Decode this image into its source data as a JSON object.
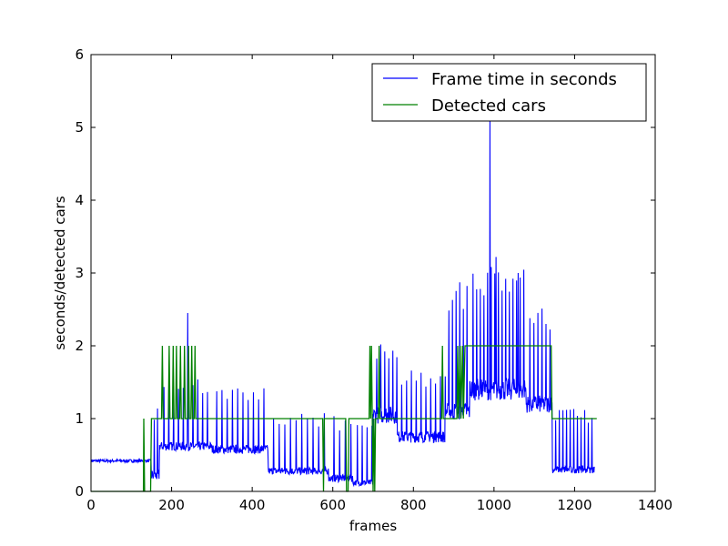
{
  "chart_data": {
    "type": "line",
    "title": "",
    "xlabel": "frames",
    "ylabel": "seconds/detected cars",
    "xlim": [
      0,
      1400
    ],
    "ylim": [
      0,
      6
    ],
    "xticks": [
      0,
      200,
      400,
      600,
      800,
      1000,
      1200,
      1400
    ],
    "yticks": [
      0,
      1,
      2,
      3,
      4,
      5,
      6
    ],
    "grid": false,
    "legend_position": "top-right",
    "series": [
      {
        "name": "Frame time in seconds",
        "color": "#0000ff",
        "segments": [
          {
            "x_start": 0,
            "x_end": 150,
            "base": 0.42,
            "spike_every": 0,
            "spike_height": 0,
            "noise": 0.02
          },
          {
            "x_start": 150,
            "x_end": 170,
            "base": 0.22,
            "spike_every": 8,
            "spike_height": 0.8,
            "noise": 0.08
          },
          {
            "x_start": 170,
            "x_end": 300,
            "base": 0.62,
            "spike_every": 12,
            "spike_height": 0.8,
            "noise": 0.06
          },
          {
            "x_start": 300,
            "x_end": 440,
            "base": 0.58,
            "spike_every": 13,
            "spike_height": 0.75,
            "noise": 0.06
          },
          {
            "x_start": 440,
            "x_end": 590,
            "base": 0.28,
            "spike_every": 14,
            "spike_height": 0.7,
            "noise": 0.05
          },
          {
            "x_start": 590,
            "x_end": 650,
            "base": 0.18,
            "spike_every": 14,
            "spike_height": 0.75,
            "noise": 0.05
          },
          {
            "x_start": 650,
            "x_end": 700,
            "base": 0.12,
            "spike_every": 12,
            "spike_height": 0.75,
            "noise": 0.04
          },
          {
            "x_start": 700,
            "x_end": 760,
            "base": 1.05,
            "spike_every": 10,
            "spike_height": 0.9,
            "noise": 0.12
          },
          {
            "x_start": 760,
            "x_end": 880,
            "base": 0.75,
            "spike_every": 12,
            "spike_height": 0.8,
            "noise": 0.08
          },
          {
            "x_start": 880,
            "x_end": 940,
            "base": 1.1,
            "spike_every": 9,
            "spike_height": 1.6,
            "noise": 0.12
          },
          {
            "x_start": 940,
            "x_end": 1080,
            "base": 1.4,
            "spike_every": 9,
            "spike_height": 1.5,
            "noise": 0.15
          },
          {
            "x_start": 1080,
            "x_end": 1145,
            "base": 1.2,
            "spike_every": 10,
            "spike_height": 1.2,
            "noise": 0.12
          },
          {
            "x_start": 1145,
            "x_end": 1250,
            "base": 0.3,
            "spike_every": 9,
            "spike_height": 0.75,
            "noise": 0.05
          }
        ],
        "peaks": [
          {
            "x": 240,
            "y": 2.45
          },
          {
            "x": 990,
            "y": 5.1
          },
          {
            "x": 1005,
            "y": 3.22
          },
          {
            "x": 1060,
            "y": 3.0
          }
        ]
      },
      {
        "name": "Detected cars",
        "color": "#008000",
        "points": [
          [
            0,
            0
          ],
          [
            130,
            0
          ],
          [
            131,
            1
          ],
          [
            133,
            0
          ],
          [
            148,
            0
          ],
          [
            150,
            1
          ],
          [
            175,
            1
          ],
          [
            177,
            2
          ],
          [
            179,
            1
          ],
          [
            192,
            1
          ],
          [
            194,
            2
          ],
          [
            196,
            1
          ],
          [
            202,
            1
          ],
          [
            204,
            2
          ],
          [
            206,
            1
          ],
          [
            210,
            1
          ],
          [
            212,
            2
          ],
          [
            214,
            1
          ],
          [
            220,
            1
          ],
          [
            222,
            2
          ],
          [
            224,
            1
          ],
          [
            230,
            1
          ],
          [
            232,
            2
          ],
          [
            234,
            1
          ],
          [
            240,
            1
          ],
          [
            242,
            2
          ],
          [
            244,
            1
          ],
          [
            248,
            1
          ],
          [
            250,
            2
          ],
          [
            252,
            1
          ],
          [
            256,
            1
          ],
          [
            258,
            2
          ],
          [
            260,
            1
          ],
          [
            575,
            1
          ],
          [
            577,
            0
          ],
          [
            579,
            1
          ],
          [
            632,
            1
          ],
          [
            634,
            0
          ],
          [
            638,
            0
          ],
          [
            640,
            1
          ],
          [
            690,
            1
          ],
          [
            692,
            2
          ],
          [
            694,
            1
          ],
          [
            696,
            2
          ],
          [
            698,
            1
          ],
          [
            700,
            0
          ],
          [
            702,
            1
          ],
          [
            704,
            0
          ],
          [
            706,
            1
          ],
          [
            713,
            1
          ],
          [
            715,
            2
          ],
          [
            717,
            1
          ],
          [
            870,
            1
          ],
          [
            872,
            2
          ],
          [
            874,
            1
          ],
          [
            908,
            1
          ],
          [
            910,
            2
          ],
          [
            912,
            1
          ],
          [
            916,
            2
          ],
          [
            918,
            1
          ],
          [
            922,
            2
          ],
          [
            924,
            1
          ],
          [
            928,
            2
          ],
          [
            930,
            2
          ],
          [
            1142,
            2
          ],
          [
            1144,
            1
          ],
          [
            1255,
            1
          ]
        ]
      }
    ]
  }
}
